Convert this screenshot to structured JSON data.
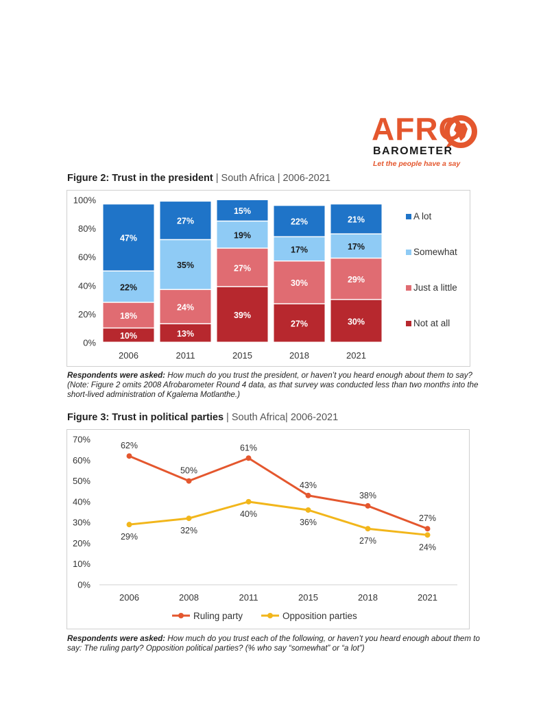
{
  "logo": {
    "text": "AFRO",
    "subtext": "BAROMETER",
    "tagline": "Let the people have a say"
  },
  "figure2": {
    "title_bold": "Figure 2",
    "title_rest": ": Trust in the president",
    "subtitle": " | South Africa | 2006-2021",
    "note_bold": "Respondents were asked:",
    "note_text": " How much do you trust the president, or haven’t you heard enough about them to say? (Note: Figure 2 omits 2008 Afrobarometer Round 4 data, as that survey was conducted less than two months into the short-lived administration of Kgalema Motlanthe.)"
  },
  "figure3": {
    "title_bold": "Figure 3: Trust in political parties",
    "subtitle": " | South Africa| 2006-2021",
    "note_bold": "Respondents were asked:",
    "note_text": " How much do you trust each of the following, or haven’t you heard enough about them to say: The ruling party? Opposition political parties? (% who say “somewhat” or “a lot”)"
  },
  "chart_data": [
    {
      "type": "bar",
      "stacked": true,
      "categories": [
        "2006",
        "2011",
        "2015",
        "2018",
        "2021"
      ],
      "series": [
        {
          "name": "Not at all",
          "values": [
            10,
            13,
            39,
            27,
            30
          ],
          "labels": [
            "10%",
            "13%",
            "39%",
            "27%",
            "30%"
          ],
          "color": "#b7282e"
        },
        {
          "name": "Just a little",
          "values": [
            18,
            24,
            27,
            30,
            29
          ],
          "labels": [
            "18%",
            "24%",
            "27%",
            "30%",
            "29%"
          ],
          "color": "#e06c72"
        },
        {
          "name": "Somewhat",
          "values": [
            22,
            35,
            19,
            17,
            17
          ],
          "labels": [
            "22%",
            "35%",
            "19%",
            "17%",
            "17%"
          ],
          "color": "#8fcbf5"
        },
        {
          "name": "A lot",
          "values": [
            47,
            27,
            15,
            22,
            21
          ],
          "labels": [
            "47%",
            "27%",
            "15%",
            "22%",
            "21%"
          ],
          "color": "#1f74c8"
        }
      ],
      "legend_order": [
        "A lot",
        "Somewhat",
        "Just a little",
        "Not at all"
      ],
      "ylim": [
        0,
        100
      ],
      "yticks": [
        "0%",
        "20%",
        "40%",
        "60%",
        "80%",
        "100%"
      ],
      "legend_position": "right"
    },
    {
      "type": "line",
      "x": [
        "2006",
        "2008",
        "2011",
        "2015",
        "2018",
        "2021"
      ],
      "series": [
        {
          "name": "Ruling party",
          "values": [
            62,
            50,
            61,
            43,
            38,
            27
          ],
          "labels": [
            "62%",
            "50%",
            "61%",
            "43%",
            "38%",
            "27%"
          ],
          "color": "#e4572e"
        },
        {
          "name": "Opposition parties",
          "values": [
            29,
            32,
            40,
            36,
            27,
            24
          ],
          "labels": [
            "29%",
            "32%",
            "40%",
            "36%",
            "27%",
            "24%"
          ],
          "color": "#f2b61b"
        }
      ],
      "ylim": [
        0,
        70
      ],
      "yticks": [
        "0%",
        "10%",
        "20%",
        "30%",
        "40%",
        "50%",
        "60%",
        "70%"
      ],
      "legend_position": "bottom"
    }
  ]
}
